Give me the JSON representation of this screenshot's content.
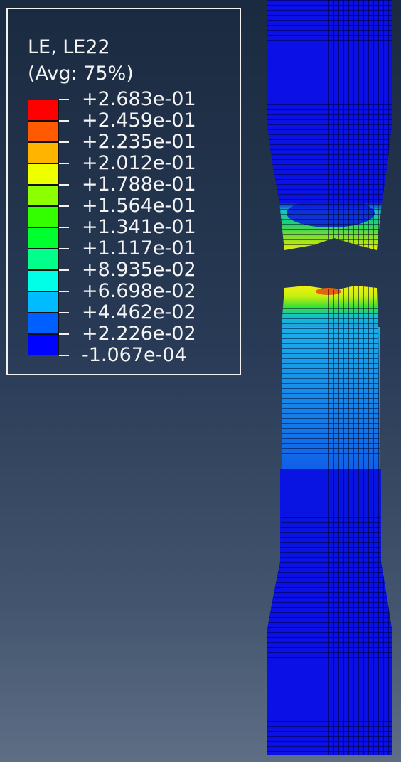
{
  "legend": {
    "title": "LE, LE22",
    "subtitle": "(Avg: 75%)",
    "colors": [
      "#ff0000",
      "#ff5a00",
      "#ffb400",
      "#eeff00",
      "#8dff00",
      "#33ff00",
      "#00ff2e",
      "#00ff8b",
      "#00ffe6",
      "#00bbff",
      "#0060ff",
      "#0004ff"
    ],
    "ticks": [
      "+2.683e-01",
      "+2.459e-01",
      "+2.235e-01",
      "+2.012e-01",
      "+1.788e-01",
      "+1.564e-01",
      "+1.341e-01",
      "+1.117e-01",
      "+8.935e-02",
      "+6.698e-02",
      "+4.462e-02",
      "+2.226e-02",
      "-1.067e-04"
    ]
  }
}
